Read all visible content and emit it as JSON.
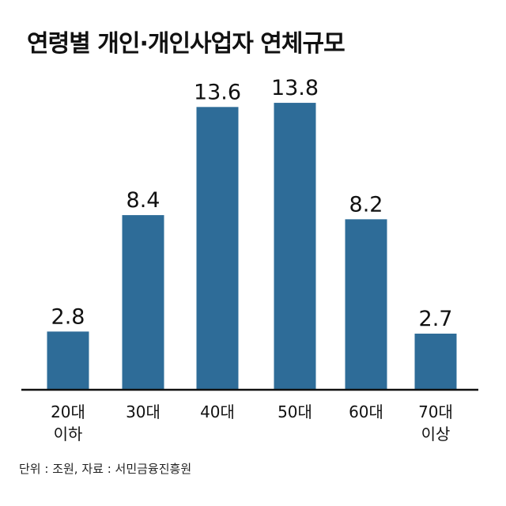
{
  "chart_data": {
    "type": "bar",
    "title": "연령별 개인·개인사업자 연체규모",
    "categories": [
      [
        "20대",
        "이하"
      ],
      [
        "30대"
      ],
      [
        "40대"
      ],
      [
        "50대"
      ],
      [
        "60대"
      ],
      [
        "70대",
        "이상"
      ]
    ],
    "values": [
      2.8,
      8.4,
      13.6,
      13.8,
      8.2,
      2.7
    ],
    "data_labels": [
      "2.8",
      "8.4",
      "13.6",
      "13.8",
      "8.2",
      "2.7"
    ],
    "note": "단위 : 조원, 자료 : 서민금융진흥원",
    "grid": false,
    "bar_color": "#2e6c98"
  }
}
